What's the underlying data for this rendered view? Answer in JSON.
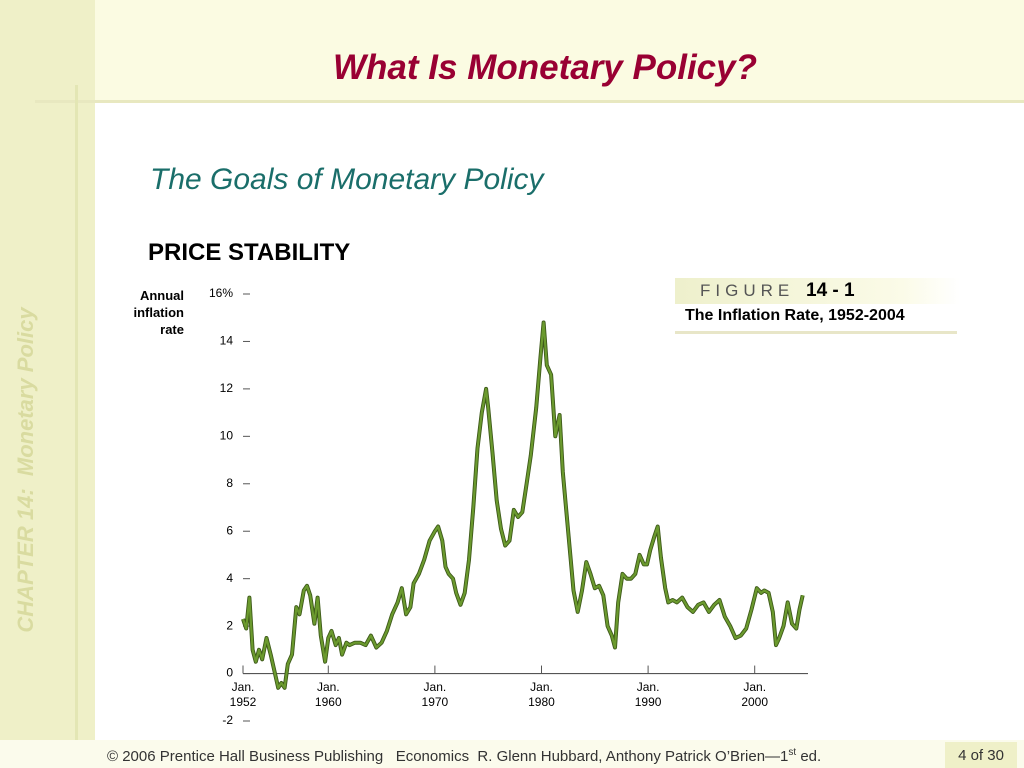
{
  "slide": {
    "title": "What Is Monetary Policy?",
    "subtitle": "The Goals of Monetary Policy",
    "heading": "PRICE STABILITY",
    "sidebar": "CHAPTER 14:  Monetary Policy",
    "figure": {
      "label": "FIGURE",
      "number": "14 - 1",
      "caption": "The Inflation Rate, 1952-2004"
    },
    "footer": {
      "credit": "© 2006 Prentice Hall Business Publishing   Economics  R. Glenn Hubbard, Anthony Patrick O’Brien—1",
      "superscript": "st",
      "edition": " ed.",
      "page": "4 of 30"
    }
  },
  "chart_data": {
    "type": "line",
    "ylabel": "Annual\ninflation\nrate",
    "color": "#6b9a2e",
    "xlim": [
      1952,
      2005
    ],
    "ylim": [
      -2,
      16
    ],
    "xticks": [
      {
        "value": 1952,
        "label": "Jan.\n1952"
      },
      {
        "value": 1960,
        "label": "Jan.\n1960"
      },
      {
        "value": 1970,
        "label": "Jan.\n1970"
      },
      {
        "value": 1980,
        "label": "Jan.\n1980"
      },
      {
        "value": 1990,
        "label": "Jan.\n1990"
      },
      {
        "value": 2000,
        "label": "Jan.\n2000"
      }
    ],
    "yticks": [
      -2,
      0,
      2,
      4,
      6,
      8,
      10,
      12,
      14,
      {
        "value": 16,
        "label": "16%"
      }
    ],
    "x": [
      1952.0,
      1952.3,
      1952.6,
      1952.9,
      1953.2,
      1953.5,
      1953.8,
      1954.2,
      1954.6,
      1955.0,
      1955.3,
      1955.6,
      1955.9,
      1956.2,
      1956.6,
      1957.0,
      1957.3,
      1957.7,
      1958.0,
      1958.3,
      1958.7,
      1959.0,
      1959.3,
      1959.7,
      1960.0,
      1960.3,
      1960.7,
      1961.0,
      1961.3,
      1961.7,
      1962.0,
      1962.5,
      1963.0,
      1963.5,
      1964.0,
      1964.5,
      1965.0,
      1965.5,
      1966.0,
      1966.5,
      1966.9,
      1967.3,
      1967.7,
      1968.0,
      1968.5,
      1969.0,
      1969.5,
      1970.0,
      1970.3,
      1970.7,
      1971.0,
      1971.3,
      1971.7,
      1972.0,
      1972.4,
      1972.8,
      1973.2,
      1973.6,
      1974.0,
      1974.4,
      1974.8,
      1975.0,
      1975.4,
      1975.8,
      1976.2,
      1976.6,
      1977.0,
      1977.4,
      1977.8,
      1978.2,
      1978.6,
      1979.0,
      1979.5,
      1979.9,
      1980.2,
      1980.5,
      1980.9,
      1981.3,
      1981.7,
      1982.0,
      1982.3,
      1982.7,
      1983.0,
      1983.4,
      1983.8,
      1984.2,
      1984.6,
      1985.0,
      1985.4,
      1985.8,
      1986.2,
      1986.6,
      1986.9,
      1987.2,
      1987.6,
      1988.0,
      1988.4,
      1988.8,
      1989.2,
      1989.6,
      1989.9,
      1990.2,
      1990.6,
      1990.9,
      1991.2,
      1991.6,
      1991.9,
      1992.3,
      1992.7,
      1993.2,
      1993.7,
      1994.2,
      1994.7,
      1995.2,
      1995.7,
      1996.2,
      1996.7,
      1997.2,
      1997.7,
      1998.2,
      1998.7,
      1999.2,
      1999.7,
      2000.2,
      2000.6,
      2000.9,
      2001.3,
      2001.7,
      2002.0,
      2002.3,
      2002.7,
      2003.1,
      2003.5,
      2003.9,
      2004.2,
      2004.5
    ],
    "values": [
      2.3,
      1.9,
      3.2,
      1.0,
      0.5,
      1.0,
      0.6,
      1.5,
      0.8,
      0.0,
      -0.6,
      -0.4,
      -0.6,
      0.4,
      0.8,
      2.8,
      2.5,
      3.5,
      3.7,
      3.3,
      2.1,
      3.2,
      1.6,
      0.5,
      1.5,
      1.8,
      1.2,
      1.5,
      0.8,
      1.3,
      1.2,
      1.3,
      1.3,
      1.2,
      1.6,
      1.1,
      1.3,
      1.8,
      2.5,
      3.0,
      3.6,
      2.5,
      2.8,
      3.8,
      4.2,
      4.8,
      5.6,
      6.0,
      6.2,
      5.6,
      4.5,
      4.2,
      4.0,
      3.4,
      2.9,
      3.4,
      4.8,
      7.0,
      9.5,
      11.0,
      12.0,
      11.2,
      9.3,
      7.3,
      6.1,
      5.4,
      5.6,
      6.9,
      6.6,
      6.8,
      8.0,
      9.2,
      11.2,
      13.3,
      14.8,
      13.0,
      12.6,
      10.0,
      10.9,
      8.5,
      7.0,
      5.0,
      3.5,
      2.6,
      3.5,
      4.7,
      4.2,
      3.6,
      3.7,
      3.3,
      2.0,
      1.6,
      1.1,
      3.0,
      4.2,
      4.0,
      4.0,
      4.2,
      5.0,
      4.6,
      4.6,
      5.2,
      5.8,
      6.2,
      4.9,
      3.6,
      3.0,
      3.1,
      3.0,
      3.2,
      2.8,
      2.6,
      2.9,
      3.0,
      2.6,
      2.9,
      3.1,
      2.4,
      2.0,
      1.5,
      1.6,
      1.9,
      2.7,
      3.6,
      3.4,
      3.5,
      3.4,
      2.6,
      1.2,
      1.5,
      2.0,
      3.0,
      2.1,
      1.9,
      2.7,
      3.3
    ]
  }
}
